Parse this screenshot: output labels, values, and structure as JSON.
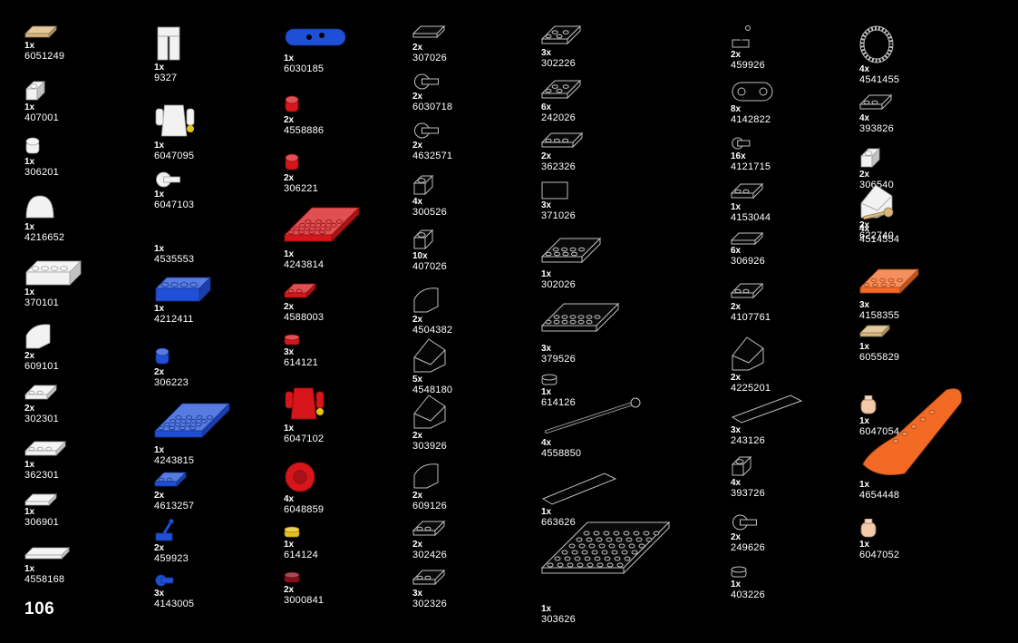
{
  "page_number": "106",
  "colors": {
    "background": "#000000",
    "white": "#f2f2f2",
    "blue": "#1f4fd6",
    "red": "#d6161a",
    "black_outline": "#9a9a9a",
    "orange": "#f36a24",
    "tan": "#d9b77c",
    "flesh": "#f3c9a7",
    "yellow": "#e8c21b",
    "dark_red": "#8b0f1a"
  },
  "columns": [
    {
      "parts": [
        {
          "qty": "1x",
          "id": "6051249",
          "color": "tan",
          "shape": "tile-small"
        },
        {
          "qty": "1x",
          "id": "407001",
          "color": "white",
          "shape": "brick-1x1"
        },
        {
          "qty": "1x",
          "id": "306201",
          "color": "white",
          "shape": "round-1x1"
        },
        {
          "qty": "1x",
          "id": "4216652",
          "color": "white",
          "shape": "dome"
        },
        {
          "qty": "1x",
          "id": "370101",
          "color": "white",
          "shape": "brick-1x4"
        },
        {
          "qty": "2x",
          "id": "609101",
          "color": "white",
          "shape": "slope-curved"
        },
        {
          "qty": "2x",
          "id": "302301",
          "color": "white",
          "shape": "plate-1x2"
        },
        {
          "qty": "1x",
          "id": "362301",
          "color": "white",
          "shape": "plate-1x3"
        },
        {
          "qty": "1x",
          "id": "306901",
          "color": "white",
          "shape": "tile-1x4"
        },
        {
          "qty": "1x",
          "id": "4558168",
          "color": "white",
          "shape": "tile-1x6"
        }
      ]
    },
    {
      "parts": [
        {
          "qty": "1x",
          "id": "9327",
          "color": "white",
          "shape": "legs"
        },
        {
          "qty": "1x",
          "id": "6047095",
          "color": "white",
          "shape": "torso"
        },
        {
          "qty": "1x",
          "id": "6047103",
          "color": "white",
          "shape": "clip"
        },
        {
          "qty": "1x",
          "id": "4535553",
          "color": "white",
          "shape": "none"
        },
        {
          "qty": "1x",
          "id": "4212411",
          "color": "blue",
          "shape": "brick-1x4"
        },
        {
          "qty": "2x",
          "id": "306223",
          "color": "blue",
          "shape": "round-1x1"
        },
        {
          "qty": "1x",
          "id": "4243815",
          "color": "blue",
          "shape": "plate-4x4"
        },
        {
          "qty": "2x",
          "id": "4613257",
          "color": "blue",
          "shape": "plate-1x2"
        },
        {
          "qty": "2x",
          "id": "459923",
          "color": "blue",
          "shape": "lever"
        },
        {
          "qty": "3x",
          "id": "4143005",
          "color": "blue",
          "shape": "clip-small"
        }
      ]
    },
    {
      "parts": [
        {
          "qty": "1x",
          "id": "6030185",
          "color": "blue",
          "shape": "skateboard"
        },
        {
          "qty": "2x",
          "id": "4558886",
          "color": "red",
          "shape": "round-1x1"
        },
        {
          "qty": "2x",
          "id": "306221",
          "color": "red",
          "shape": "round-1x1"
        },
        {
          "qty": "1x",
          "id": "4243814",
          "color": "red",
          "shape": "plate-4x4"
        },
        {
          "qty": "2x",
          "id": "4588003",
          "color": "red",
          "shape": "plate-1x2"
        },
        {
          "qty": "3x",
          "id": "614121",
          "color": "red",
          "shape": "round-plate"
        },
        {
          "qty": "1x",
          "id": "6047102",
          "color": "red",
          "shape": "torso"
        },
        {
          "qty": "4x",
          "id": "6048859",
          "color": "red",
          "shape": "wheel"
        },
        {
          "qty": "1x",
          "id": "614124",
          "color": "yellow",
          "shape": "round-plate"
        },
        {
          "qty": "2x",
          "id": "3000841",
          "color": "dark_red",
          "shape": "round-plate"
        }
      ]
    },
    {
      "parts": [
        {
          "qty": "2x",
          "id": "307026",
          "color": "black_outline",
          "shape": "tile-small"
        },
        {
          "qty": "2x",
          "id": "6030718",
          "color": "black_outline",
          "shape": "clip"
        },
        {
          "qty": "2x",
          "id": "4632571",
          "color": "black_outline",
          "shape": "clip"
        },
        {
          "qty": "4x",
          "id": "300526",
          "color": "black_outline",
          "shape": "brick-1x1"
        },
        {
          "qty": "10x",
          "id": "407026",
          "color": "black_outline",
          "shape": "brick-1x1"
        },
        {
          "qty": "2x",
          "id": "4504382",
          "color": "black_outline",
          "shape": "slope-curved"
        },
        {
          "qty": "5x",
          "id": "4548180",
          "color": "black_outline",
          "shape": "slope"
        },
        {
          "qty": "2x",
          "id": "303926",
          "color": "black_outline",
          "shape": "slope"
        },
        {
          "qty": "2x",
          "id": "609126",
          "color": "black_outline",
          "shape": "slope-curved"
        },
        {
          "qty": "2x",
          "id": "302426",
          "color": "black_outline",
          "shape": "plate-1x2"
        },
        {
          "qty": "3x",
          "id": "302326",
          "color": "black_outline",
          "shape": "plate-1x2"
        }
      ]
    },
    {
      "parts": [
        {
          "qty": "3x",
          "id": "302226",
          "color": "black_outline",
          "shape": "plate-2x2"
        },
        {
          "qty": "6x",
          "id": "242026",
          "color": "black_outline",
          "shape": "plate-2x2"
        },
        {
          "qty": "2x",
          "id": "362326",
          "color": "black_outline",
          "shape": "plate-1x3"
        },
        {
          "qty": "3x",
          "id": "371026",
          "color": "black_outline",
          "shape": "plate-1x4"
        },
        {
          "qty": "1x",
          "id": "302026",
          "color": "black_outline",
          "shape": "plate-2x4"
        },
        {
          "qty": "3x",
          "id": "379526",
          "color": "black_outline",
          "shape": "plate-2x6"
        },
        {
          "qty": "1x",
          "id": "614126",
          "color": "black_outline",
          "shape": "round-plate"
        },
        {
          "qty": "4x",
          "id": "4558850",
          "color": "black_outline",
          "shape": "bar"
        },
        {
          "qty": "1x",
          "id": "663626",
          "color": "black_outline",
          "shape": "tile-long"
        },
        {
          "qty": "1x",
          "id": "303626",
          "color": "black_outline",
          "shape": "plate-big"
        }
      ]
    },
    {
      "parts": [
        {
          "qty": "2x",
          "id": "459926",
          "color": "black_outline",
          "shape": "lever"
        },
        {
          "qty": "8x",
          "id": "4142822",
          "color": "black_outline",
          "shape": "link"
        },
        {
          "qty": "16x",
          "id": "4121715",
          "color": "black_outline",
          "shape": "clip-small"
        },
        {
          "qty": "1x",
          "id": "4153044",
          "color": "black_outline",
          "shape": "plate-1x2"
        },
        {
          "qty": "6x",
          "id": "306926",
          "color": "black_outline",
          "shape": "tile-1x4"
        },
        {
          "qty": "2x",
          "id": "4107761",
          "color": "black_outline",
          "shape": "plate-1x2"
        },
        {
          "qty": "2x",
          "id": "4225201",
          "color": "black_outline",
          "shape": "slope"
        },
        {
          "qty": "3x",
          "id": "243126",
          "color": "black_outline",
          "shape": "tile-long"
        },
        {
          "qty": "4x",
          "id": "393726",
          "color": "black_outline",
          "shape": "brick-1x1"
        },
        {
          "qty": "2x",
          "id": "249626",
          "color": "black_outline",
          "shape": "clip"
        },
        {
          "qty": "1x",
          "id": "403226",
          "color": "black_outline",
          "shape": "round-plate"
        }
      ]
    },
    {
      "parts": [
        {
          "qty": "4x",
          "id": "4541455",
          "color": "black_outline",
          "shape": "ring"
        },
        {
          "qty": "4x",
          "id": "393826",
          "color": "black_outline",
          "shape": "plate-1x2"
        },
        {
          "qty": "2x",
          "id": "306540",
          "color": "white",
          "shape": "brick-1x1"
        },
        {
          "qty": "2x",
          "id": "622740",
          "color": "white",
          "shape": "slope"
        },
        {
          "qty": "4x",
          "id": "4514554",
          "color": "tan",
          "shape": "bar"
        },
        {
          "qty": "3x",
          "id": "4158355",
          "color": "orange",
          "shape": "plate-2x4"
        },
        {
          "qty": "1x",
          "id": "6055829",
          "color": "tan",
          "shape": "tile-small"
        },
        {
          "qty": "1x",
          "id": "4654448",
          "color": "orange",
          "shape": "boat"
        },
        {
          "qty": "1x",
          "id": "6047054",
          "color": "flesh",
          "shape": "head"
        },
        {
          "qty": "1x",
          "id": "6047052",
          "color": "flesh",
          "shape": "head"
        }
      ]
    }
  ]
}
